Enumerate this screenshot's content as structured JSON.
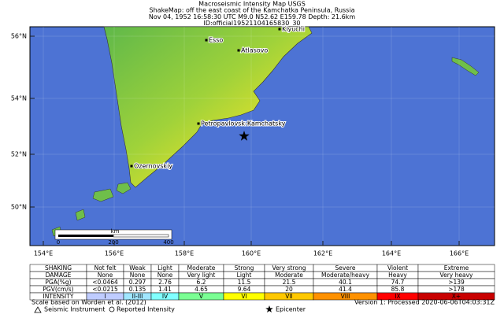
{
  "header": {
    "lines": [
      "Macroseismic Intensity Map USGS",
      "ShakeMap: off the east coast of the Kamchatka Peninsula, Russia",
      "Nov 04, 1952 16:58:30 UTC M9.0 N52.62 E159.78 Depth: 21.6km",
      "ID:official19521104165830_30"
    ]
  },
  "map": {
    "lat_labels": [
      "56°N",
      "54°N",
      "52°N",
      "50°N"
    ],
    "lon_labels": [
      "154°E",
      "156°E",
      "158°E",
      "160°E",
      "162°E",
      "164°E",
      "166°E"
    ],
    "places": [
      "Klyuchi",
      "Esso",
      "Atlasovo",
      "Petropavlovsk-Kamchatsky",
      "Ozernovskiy"
    ],
    "scale_bar": {
      "unit": "km",
      "ticks": [
        "0",
        "200",
        "400"
      ]
    }
  },
  "legend_table": {
    "rows": [
      [
        "SHAKING",
        "Not felt",
        "Weak",
        "Light",
        "Moderate",
        "Strong",
        "Very strong",
        "Severe",
        "Violent",
        "Extreme"
      ],
      [
        "DAMAGE",
        "None",
        "None",
        "None",
        "Very light",
        "Light",
        "Moderate",
        "Moderate/heavy",
        "Heavy",
        "Very heavy"
      ],
      [
        "PGA(%g)",
        "<0.0464",
        "0.297",
        "2.76",
        "6.2",
        "11.5",
        "21.5",
        "40.1",
        "74.7",
        ">139"
      ],
      [
        "PGV(cm/s)",
        "<0.0215",
        "0.135",
        "1.41",
        "4.65",
        "9.64",
        "20",
        "41.4",
        "85.8",
        ">178"
      ],
      [
        "INTENSITY",
        "I",
        "II-III",
        "IV",
        "V",
        "VI",
        "VII",
        "VIII",
        "IX",
        "X+"
      ]
    ]
  },
  "footer": {
    "left": "Scale based on Worden et al. (2012)",
    "right": "Version 1: Processed 2020-06-06T04:03:31Z",
    "symbols": [
      "Seismic Instrument",
      "Reported Intensity",
      "Epicenter"
    ]
  }
}
